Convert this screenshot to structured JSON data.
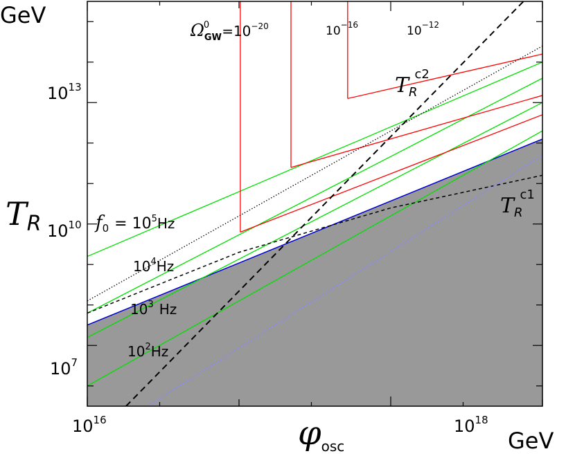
{
  "chart_data": {
    "type": "line",
    "xscale": "log",
    "yscale": "log",
    "xlim": [
      1e+16,
      1e+19
    ],
    "ylim": [
      316000.0,
      3160000000000000.0
    ],
    "x_ticks": [
      {
        "value": 1e+16,
        "base": "10",
        "exp": "16"
      },
      {
        "value": 1e+18,
        "base": "10",
        "exp": "18"
      }
    ],
    "y_ticks": [
      {
        "value": 10000000.0,
        "base": "10",
        "exp": "7"
      },
      {
        "value": 10000000000.0,
        "base": "10",
        "exp": "10"
      },
      {
        "value": 10000000000000.0,
        "base": "10",
        "exp": "13"
      }
    ],
    "x_axis": {
      "symbol": "φ",
      "subscript": "osc",
      "unit": "GeV"
    },
    "y_axis": {
      "symbol": "T",
      "subscript": "R",
      "unit": "GeV"
    },
    "excluded_region": {
      "fill": "#999999",
      "edge_color": "#0000cc",
      "boundary": [
        [
          1e+16,
          32000000.0
        ],
        [
          1e+19,
          1260000000000.0
        ]
      ]
    },
    "series": [
      {
        "kind": "green",
        "color": "#00e000",
        "points": [
          [
            1e+16,
            1580000000.0
          ],
          [
            1e+19,
            100000000000000.0
          ]
        ]
      },
      {
        "kind": "green",
        "color": "#00e000",
        "points": [
          [
            1e+16,
            63000000.0
          ],
          [
            1e+19,
            40000000000000.0
          ]
        ]
      },
      {
        "kind": "green",
        "color": "#00e000",
        "points": [
          [
            1e+16,
            15800000.0
          ],
          [
            1e+19,
            10000000000000.0
          ]
        ]
      },
      {
        "kind": "green",
        "color": "#00e000",
        "points": [
          [
            1e+16,
            1000000.0
          ],
          [
            1e+19,
            2000000000000.0
          ]
        ]
      },
      {
        "kind": "red",
        "color": "#ff0000",
        "points": [
          [
            1.02e+17,
            6300000000.0
          ],
          [
            1.02e+17,
            3160000000000000.0
          ]
        ]
      },
      {
        "kind": "red",
        "color": "#ff0000",
        "points": [
          [
            1.02e+17,
            6300000000.0
          ],
          [
            1e+19,
            5000000000000.0
          ]
        ]
      },
      {
        "kind": "red",
        "color": "#ff0000",
        "points": [
          [
            2.2e+17,
            250000000000.0
          ],
          [
            2.2e+17,
            3160000000000000.0
          ]
        ]
      },
      {
        "kind": "red",
        "color": "#ff0000",
        "points": [
          [
            2.2e+17,
            250000000000.0
          ],
          [
            1e+19,
            15000000000000.0
          ]
        ]
      },
      {
        "kind": "red",
        "color": "#ff0000",
        "points": [
          [
            5.2e+17,
            12600000000000.0
          ],
          [
            5.2e+17,
            3160000000000000.0
          ]
        ]
      },
      {
        "kind": "red",
        "color": "#ff0000",
        "points": [
          [
            5.2e+17,
            12600000000000.0
          ],
          [
            1e+19,
            158000000000000.0
          ]
        ]
      },
      {
        "kind": "Tc2",
        "color": "#000000",
        "dash": "dashed",
        "points": [
          [
            1.8e+16,
            316000.0
          ],
          [
            7.5e+18,
            3160000000000000.0
          ]
        ]
      },
      {
        "kind": "Tc1",
        "color": "#000000",
        "dash": "short-dashed",
        "points": [
          [
            1e+16,
            63000000.0
          ],
          [
            1e+17,
            2000000000.0
          ],
          [
            1e+18,
            25000000000.0
          ],
          [
            1e+19,
            160000000000.0
          ]
        ]
      },
      {
        "kind": "dotted",
        "color": "#000000",
        "dash": "dotted",
        "points": [
          [
            1e+16,
            126000000.0
          ],
          [
            1e+19,
            250000000000000.0
          ]
        ]
      },
      {
        "kind": "white-dotted",
        "color": "#8888ff",
        "dash": "dotted",
        "points": [
          [
            2.5e+16,
            316000.0
          ],
          [
            1e+19,
            500000000000.0
          ]
        ]
      }
    ],
    "annotations": {
      "omega_prefix": "Ω",
      "omega_sub": "GW",
      "omega_sup": "0",
      "omega_eq": "=10",
      "omega_exp": "−20",
      "r16_base": "10",
      "r16_exp": "−16",
      "r12_base": "10",
      "r12_exp": "−12",
      "tc2_symbol": "T",
      "tc2_sub": "R",
      "tc2_sup": "c2",
      "tc1_symbol": "T",
      "tc1_sub": "R",
      "tc1_sup": "c1",
      "f0_symbol": "f",
      "f0_sub": "0",
      "f0_eq": "= 10",
      "f0_exp": "5",
      "f0_unit": "Hz",
      "f4_base": "10",
      "f4_exp": "4",
      "f4_unit": "Hz",
      "f3_base": "10",
      "f3_exp": "3",
      "f3_unit": "Hz",
      "f2_base": "10",
      "f2_exp": "2",
      "f2_unit": "Hz"
    }
  }
}
